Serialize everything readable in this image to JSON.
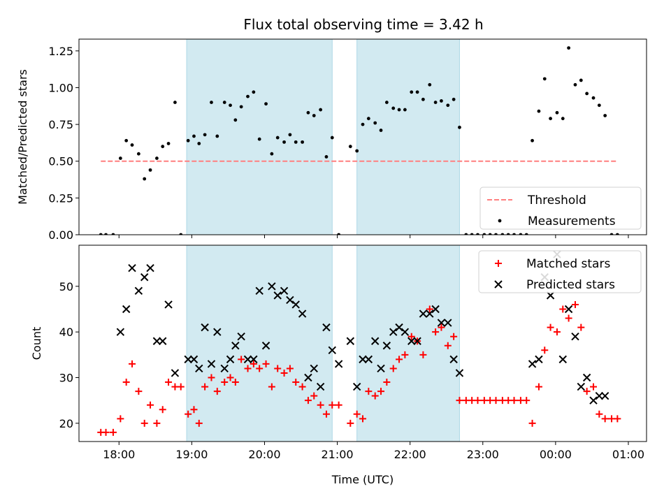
{
  "title": "Flux total observing time = 3.42 h",
  "shaded_color": "#add8e6",
  "chart_data": [
    {
      "type": "scatter",
      "panel": "top",
      "ylabel": "Matched/Predicted stars",
      "xlabel": "",
      "xlim": [
        17.45,
        25.25
      ],
      "ylim": [
        0,
        1.33
      ],
      "yticks": [
        0,
        0.25,
        0.5,
        0.75,
        1.0,
        1.25
      ],
      "ytick_labels": [
        "0.00",
        "0.25",
        "0.50",
        "0.75",
        "1.00",
        "1.25"
      ],
      "xticks": [
        18,
        19,
        20,
        21,
        22,
        23,
        24,
        25
      ],
      "xtick_labels": [
        "",
        "",
        "",
        "",
        "",
        "",
        "",
        ""
      ],
      "shaded_intervals": [
        [
          18.93,
          20.93
        ],
        [
          21.27,
          22.68
        ]
      ],
      "legend_position": "lower right",
      "threshold": {
        "name": "Threshold",
        "value": 0.5,
        "x_range": [
          17.75,
          24.85
        ],
        "color": "#ff7f7f",
        "style": "dashed"
      },
      "series": [
        {
          "name": "Measurements",
          "marker": "dot",
          "color": "#000000",
          "x": [
            17.75,
            17.82,
            17.92,
            18.02,
            18.1,
            18.18,
            18.27,
            18.35,
            18.43,
            18.52,
            18.6,
            18.68,
            18.77,
            18.85,
            18.95,
            19.03,
            19.1,
            19.18,
            19.27,
            19.35,
            19.45,
            19.53,
            19.6,
            19.68,
            19.77,
            19.85,
            19.93,
            20.02,
            20.1,
            20.18,
            20.27,
            20.35,
            20.43,
            20.52,
            20.6,
            20.68,
            20.77,
            20.85,
            20.93,
            21.02,
            21.18,
            21.27,
            21.35,
            21.43,
            21.52,
            21.6,
            21.68,
            21.77,
            21.85,
            21.93,
            22.02,
            22.1,
            22.18,
            22.27,
            22.35,
            22.43,
            22.52,
            22.6,
            22.68,
            22.77,
            22.85,
            22.93,
            23.02,
            23.1,
            23.18,
            23.27,
            23.35,
            23.43,
            23.52,
            23.6,
            23.68,
            23.77,
            23.85,
            23.93,
            24.02,
            24.1,
            24.18,
            24.27,
            24.35,
            24.43,
            24.52,
            24.6,
            24.68,
            24.77,
            24.85
          ],
          "y": [
            0,
            0,
            0,
            0.52,
            0.64,
            0.61,
            0.55,
            0.38,
            0.44,
            0.52,
            0.6,
            0.62,
            0.9,
            0,
            0.64,
            0.67,
            0.62,
            0.68,
            0.9,
            0.67,
            0.9,
            0.88,
            0.78,
            0.87,
            0.94,
            0.97,
            0.65,
            0.89,
            0.55,
            0.66,
            0.63,
            0.68,
            0.63,
            0.63,
            0.83,
            0.81,
            0.85,
            0.53,
            0.66,
            0,
            0.6,
            0.57,
            0.75,
            0.79,
            0.76,
            0.71,
            0.9,
            0.86,
            0.85,
            0.85,
            0.97,
            0.97,
            0.92,
            1.02,
            0.9,
            0.91,
            0.88,
            0.92,
            0.73,
            0,
            0,
            0,
            0,
            0,
            0,
            0,
            0,
            0,
            0,
            0,
            0.64,
            0.84,
            1.06,
            0.79,
            0.83,
            0.79,
            1.27,
            1.02,
            1.05,
            0.96,
            0.93,
            0.88,
            0.81,
            0,
            0
          ]
        }
      ]
    },
    {
      "type": "scatter",
      "panel": "bottom",
      "ylabel": "Count",
      "xlabel": "Time (UTC)",
      "xlim": [
        17.45,
        25.25
      ],
      "ylim": [
        16,
        59
      ],
      "yticks": [
        20,
        30,
        40,
        50
      ],
      "ytick_labels": [
        "20",
        "30",
        "40",
        "50"
      ],
      "xticks": [
        18,
        19,
        20,
        21,
        22,
        23,
        24,
        25
      ],
      "xtick_labels": [
        "18:00",
        "19:00",
        "20:00",
        "21:00",
        "22:00",
        "23:00",
        "00:00",
        "01:00"
      ],
      "shaded_intervals": [
        [
          18.93,
          20.93
        ],
        [
          21.27,
          22.68
        ]
      ],
      "legend_position": "upper right",
      "series": [
        {
          "name": "Matched stars",
          "marker": "plus",
          "color": "#ff0000",
          "x": [
            17.75,
            17.82,
            17.92,
            18.02,
            18.1,
            18.18,
            18.27,
            18.35,
            18.43,
            18.52,
            18.6,
            18.68,
            18.77,
            18.85,
            18.95,
            19.03,
            19.1,
            19.18,
            19.27,
            19.35,
            19.45,
            19.53,
            19.6,
            19.68,
            19.77,
            19.85,
            19.93,
            20.02,
            20.1,
            20.18,
            20.27,
            20.35,
            20.43,
            20.52,
            20.6,
            20.68,
            20.77,
            20.85,
            20.93,
            21.02,
            21.18,
            21.27,
            21.35,
            21.43,
            21.52,
            21.6,
            21.68,
            21.77,
            21.85,
            21.93,
            22.02,
            22.1,
            22.18,
            22.27,
            22.35,
            22.43,
            22.52,
            22.6,
            22.68,
            22.77,
            22.85,
            22.93,
            23.02,
            23.1,
            23.18,
            23.27,
            23.35,
            23.43,
            23.52,
            23.6,
            23.68,
            23.77,
            23.85,
            23.93,
            24.02,
            24.1,
            24.18,
            24.27,
            24.35,
            24.43,
            24.52,
            24.6,
            24.68,
            24.77,
            24.85
          ],
          "y": [
            18,
            18,
            18,
            21,
            29,
            33,
            27,
            20,
            24,
            20,
            23,
            29,
            28,
            28,
            22,
            23,
            20,
            28,
            30,
            27,
            29,
            30,
            29,
            34,
            32,
            33,
            32,
            33,
            28,
            32,
            31,
            32,
            29,
            28,
            25,
            26,
            24,
            22,
            24,
            24,
            20,
            22,
            21,
            27,
            26,
            27,
            29,
            32,
            34,
            35,
            39,
            38,
            35,
            45,
            40,
            41,
            37,
            39,
            25,
            25,
            25,
            25,
            25,
            25,
            25,
            25,
            25,
            25,
            25,
            25,
            20,
            28,
            36,
            41,
            40,
            45,
            43,
            46,
            41,
            27,
            28,
            22,
            21,
            21,
            21
          ]
        },
        {
          "name": "Predicted stars",
          "marker": "x",
          "color": "#000000",
          "x": [
            18.02,
            18.1,
            18.18,
            18.27,
            18.35,
            18.43,
            18.52,
            18.6,
            18.68,
            18.77,
            18.95,
            19.03,
            19.1,
            19.18,
            19.27,
            19.35,
            19.45,
            19.53,
            19.6,
            19.68,
            19.77,
            19.85,
            19.93,
            20.02,
            20.1,
            20.18,
            20.27,
            20.35,
            20.43,
            20.52,
            20.6,
            20.68,
            20.77,
            20.85,
            20.93,
            21.02,
            21.18,
            21.27,
            21.35,
            21.43,
            21.52,
            21.6,
            21.68,
            21.77,
            21.85,
            21.93,
            22.02,
            22.1,
            22.18,
            22.27,
            22.35,
            22.43,
            22.52,
            22.6,
            22.68,
            23.68,
            23.77,
            23.85,
            23.93,
            24.02,
            24.1,
            24.18,
            24.27,
            24.35,
            24.43,
            24.52,
            24.6,
            24.68
          ],
          "y": [
            40,
            45,
            54,
            49,
            52,
            54,
            38,
            38,
            46,
            31,
            34,
            34,
            32,
            41,
            33,
            40,
            32,
            34,
            37,
            39,
            34,
            34,
            49,
            37,
            50,
            48,
            49,
            47,
            46,
            44,
            30,
            32,
            28,
            41,
            36,
            33,
            38,
            28,
            34,
            34,
            38,
            32,
            37,
            40,
            41,
            40,
            38,
            38,
            44,
            44,
            45,
            42,
            42,
            34,
            31,
            33,
            34,
            52,
            48,
            57,
            34,
            45,
            39,
            28,
            30,
            25,
            26,
            26
          ]
        }
      ]
    }
  ]
}
